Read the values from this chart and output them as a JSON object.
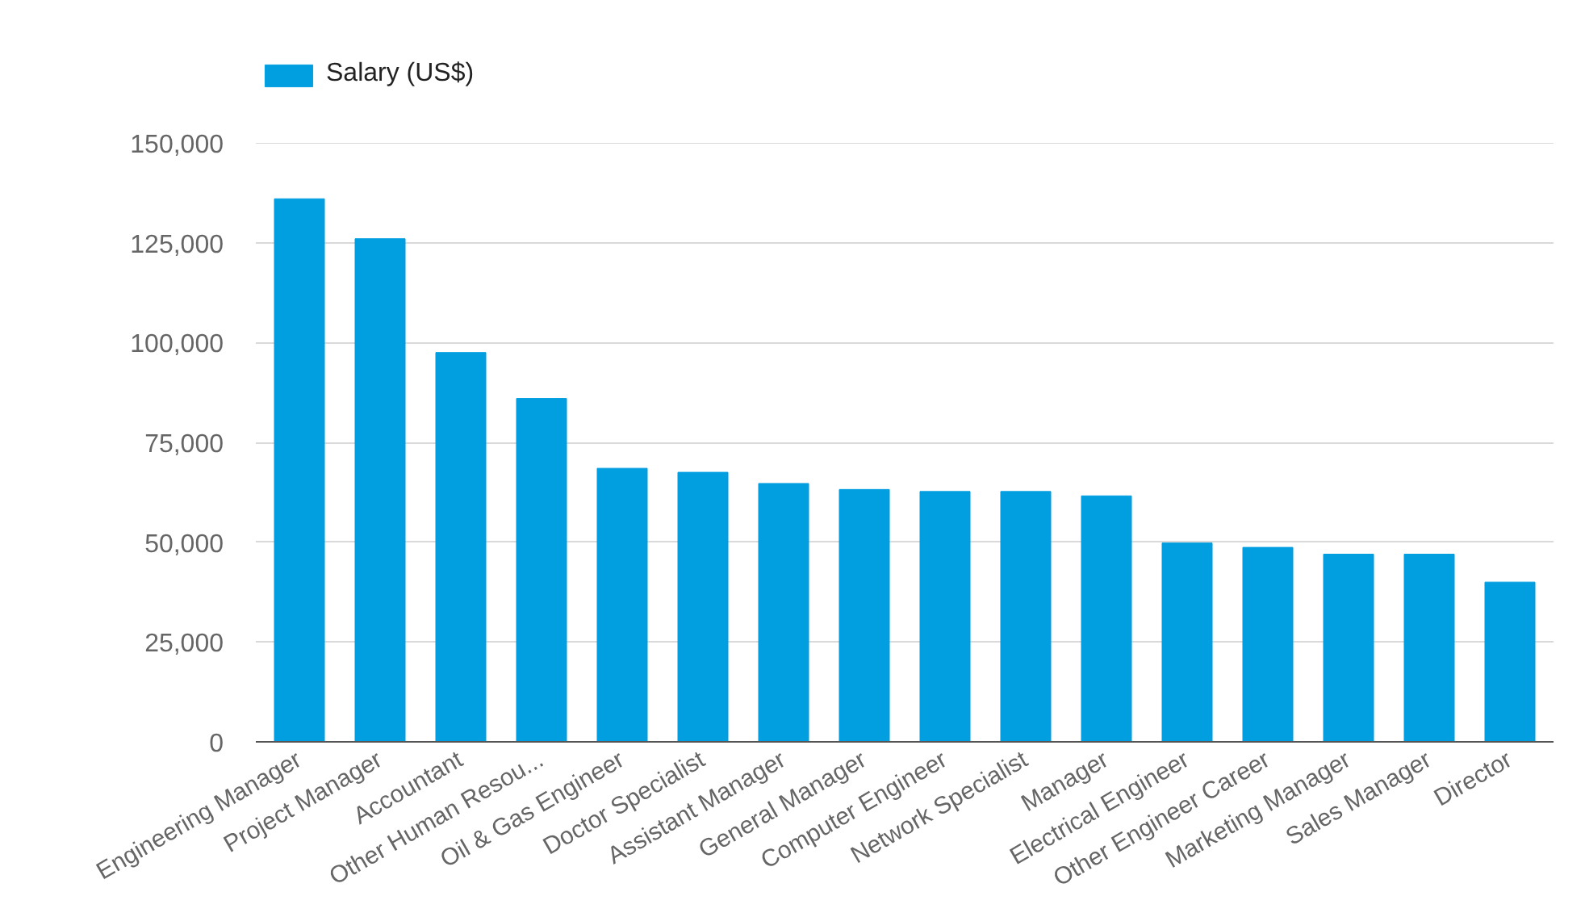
{
  "chart_data": {
    "type": "bar",
    "categories": [
      "Engineering Manager",
      "Project Manager",
      "Accountant",
      "Other Human Resou...",
      "Oil & Gas Engineer",
      "Doctor Specialist",
      "Assistant Manager",
      "General Manager",
      "Computer Engineer",
      "Network Specialist",
      "Manager",
      "Electrical Engineer",
      "Other Engineer Career",
      "Marketing Manager",
      "Sales Manager",
      "Director"
    ],
    "series": [
      {
        "name": "Salary (US$)",
        "color": "#019ee0",
        "values": [
          136000,
          126000,
          97500,
          86000,
          68500,
          67500,
          64700,
          63200,
          62700,
          62700,
          61600,
          49800,
          48700,
          47000,
          47000,
          40000
        ]
      }
    ],
    "ylim": [
      0,
      150000
    ],
    "yticks": [
      0,
      {
        "value": 25000,
        "label": "25,000"
      },
      {
        "value": 50000,
        "label": "50,000"
      },
      {
        "value": 75000,
        "label": "75,000"
      },
      {
        "value": 100000,
        "label": "100,000"
      },
      {
        "value": 125000,
        "label": "125,000"
      },
      {
        "value": 150000,
        "label": "150,000"
      }
    ],
    "grid": "y",
    "legend": "top left"
  }
}
